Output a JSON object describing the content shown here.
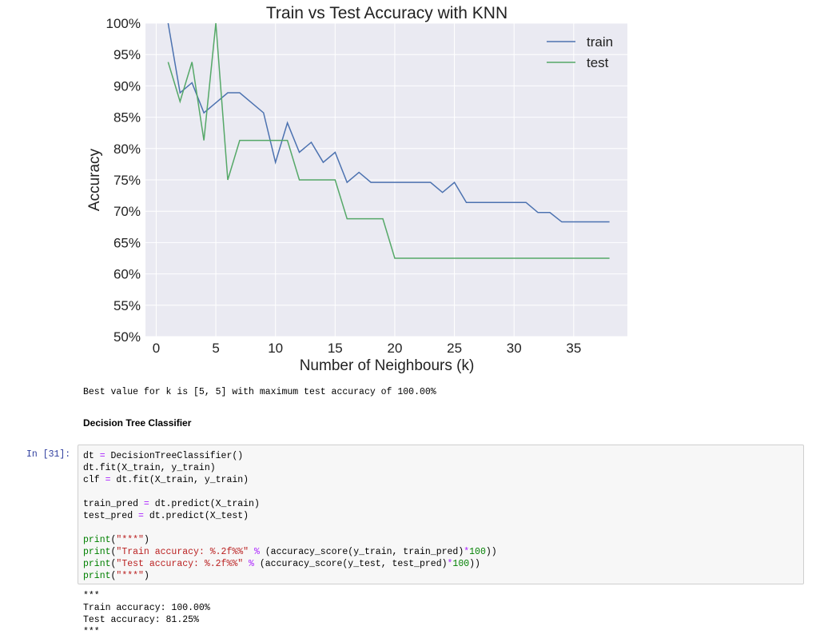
{
  "chart_data": {
    "type": "line",
    "title": "Train vs Test Accuracy with KNN",
    "xlabel": "Number of Neighbours (k)",
    "ylabel": "Accuracy",
    "xlim": [
      -0.9,
      39.5
    ],
    "ylim": [
      50,
      100
    ],
    "xticks": [
      0,
      5,
      10,
      15,
      20,
      25,
      30,
      35
    ],
    "yticks": [
      50,
      55,
      60,
      65,
      70,
      75,
      80,
      85,
      90,
      95,
      100
    ],
    "ytick_suffix": "%",
    "grid": true,
    "legend": "top-right",
    "x": [
      1,
      2,
      3,
      4,
      5,
      6,
      7,
      8,
      9,
      10,
      11,
      12,
      13,
      14,
      15,
      16,
      17,
      18,
      19,
      20,
      21,
      22,
      23,
      24,
      25,
      26,
      27,
      28,
      29,
      30,
      31,
      32,
      33,
      34,
      35,
      36,
      37,
      38
    ],
    "series": [
      {
        "name": "train",
        "color": "#4c72b0",
        "values": [
          100,
          88.9,
          90.5,
          85.7,
          87.3,
          88.9,
          88.9,
          87.3,
          85.7,
          77.8,
          84.1,
          79.4,
          81.0,
          77.8,
          79.4,
          74.6,
          76.2,
          74.6,
          74.6,
          74.6,
          74.6,
          74.6,
          74.6,
          73.0,
          74.6,
          71.4,
          71.4,
          71.4,
          71.4,
          71.4,
          71.4,
          69.8,
          69.8,
          68.3,
          68.3,
          68.3,
          68.3,
          68.3
        ]
      },
      {
        "name": "test",
        "color": "#55a868",
        "values": [
          93.8,
          87.5,
          93.8,
          81.3,
          100,
          75.0,
          81.3,
          81.3,
          81.3,
          81.3,
          81.3,
          75.0,
          75.0,
          75.0,
          75.0,
          68.8,
          68.8,
          68.8,
          68.8,
          62.5,
          62.5,
          62.5,
          62.5,
          62.5,
          62.5,
          62.5,
          62.5,
          62.5,
          62.5,
          62.5,
          62.5,
          62.5,
          62.5,
          62.5,
          62.5,
          62.5,
          62.5,
          62.5
        ]
      }
    ]
  },
  "output1": "Best value for k is [5, 5] with maximum test accuracy of 100.00%",
  "section_heading": "Decision Tree Classifier",
  "cell_prompt": "In [31]:",
  "code": {
    "l1a": "dt ",
    "l1op": "=",
    "l1b": " DecisionTreeClassifier()",
    "l2": "dt.fit(X_train, y_train)",
    "l3a": "clf ",
    "l3op": "=",
    "l3b": " dt.fit(X_train, y_train)",
    "l5a": "train_pred ",
    "l5op": "=",
    "l5b": " dt.predict(X_train)",
    "l6a": "test_pred ",
    "l6op": "=",
    "l6b": " dt.predict(X_test)",
    "l8fn": "print",
    "l8a": "(",
    "l8s": "\"***\"",
    "l8b": ")",
    "l9fn": "print",
    "l9a": "(",
    "l9s": "\"Train accuracy: %.2f%%\"",
    "l9op": " % ",
    "l9b": "(accuracy_score(y_train, train_pred)",
    "l9op2": "*",
    "l9n": "100",
    "l9c": "))",
    "l10fn": "print",
    "l10a": "(",
    "l10s": "\"Test accuracy: %.2f%%\"",
    "l10op": " % ",
    "l10b": "(accuracy_score(y_test, test_pred)",
    "l10op2": "*",
    "l10n": "100",
    "l10c": "))",
    "l11fn": "print",
    "l11a": "(",
    "l11s": "\"***\"",
    "l11b": ")"
  },
  "output2": {
    "line1": "***",
    "line2": "Train accuracy: 100.00%",
    "line3": "Test accuracy: 81.25%",
    "line4": "***"
  }
}
